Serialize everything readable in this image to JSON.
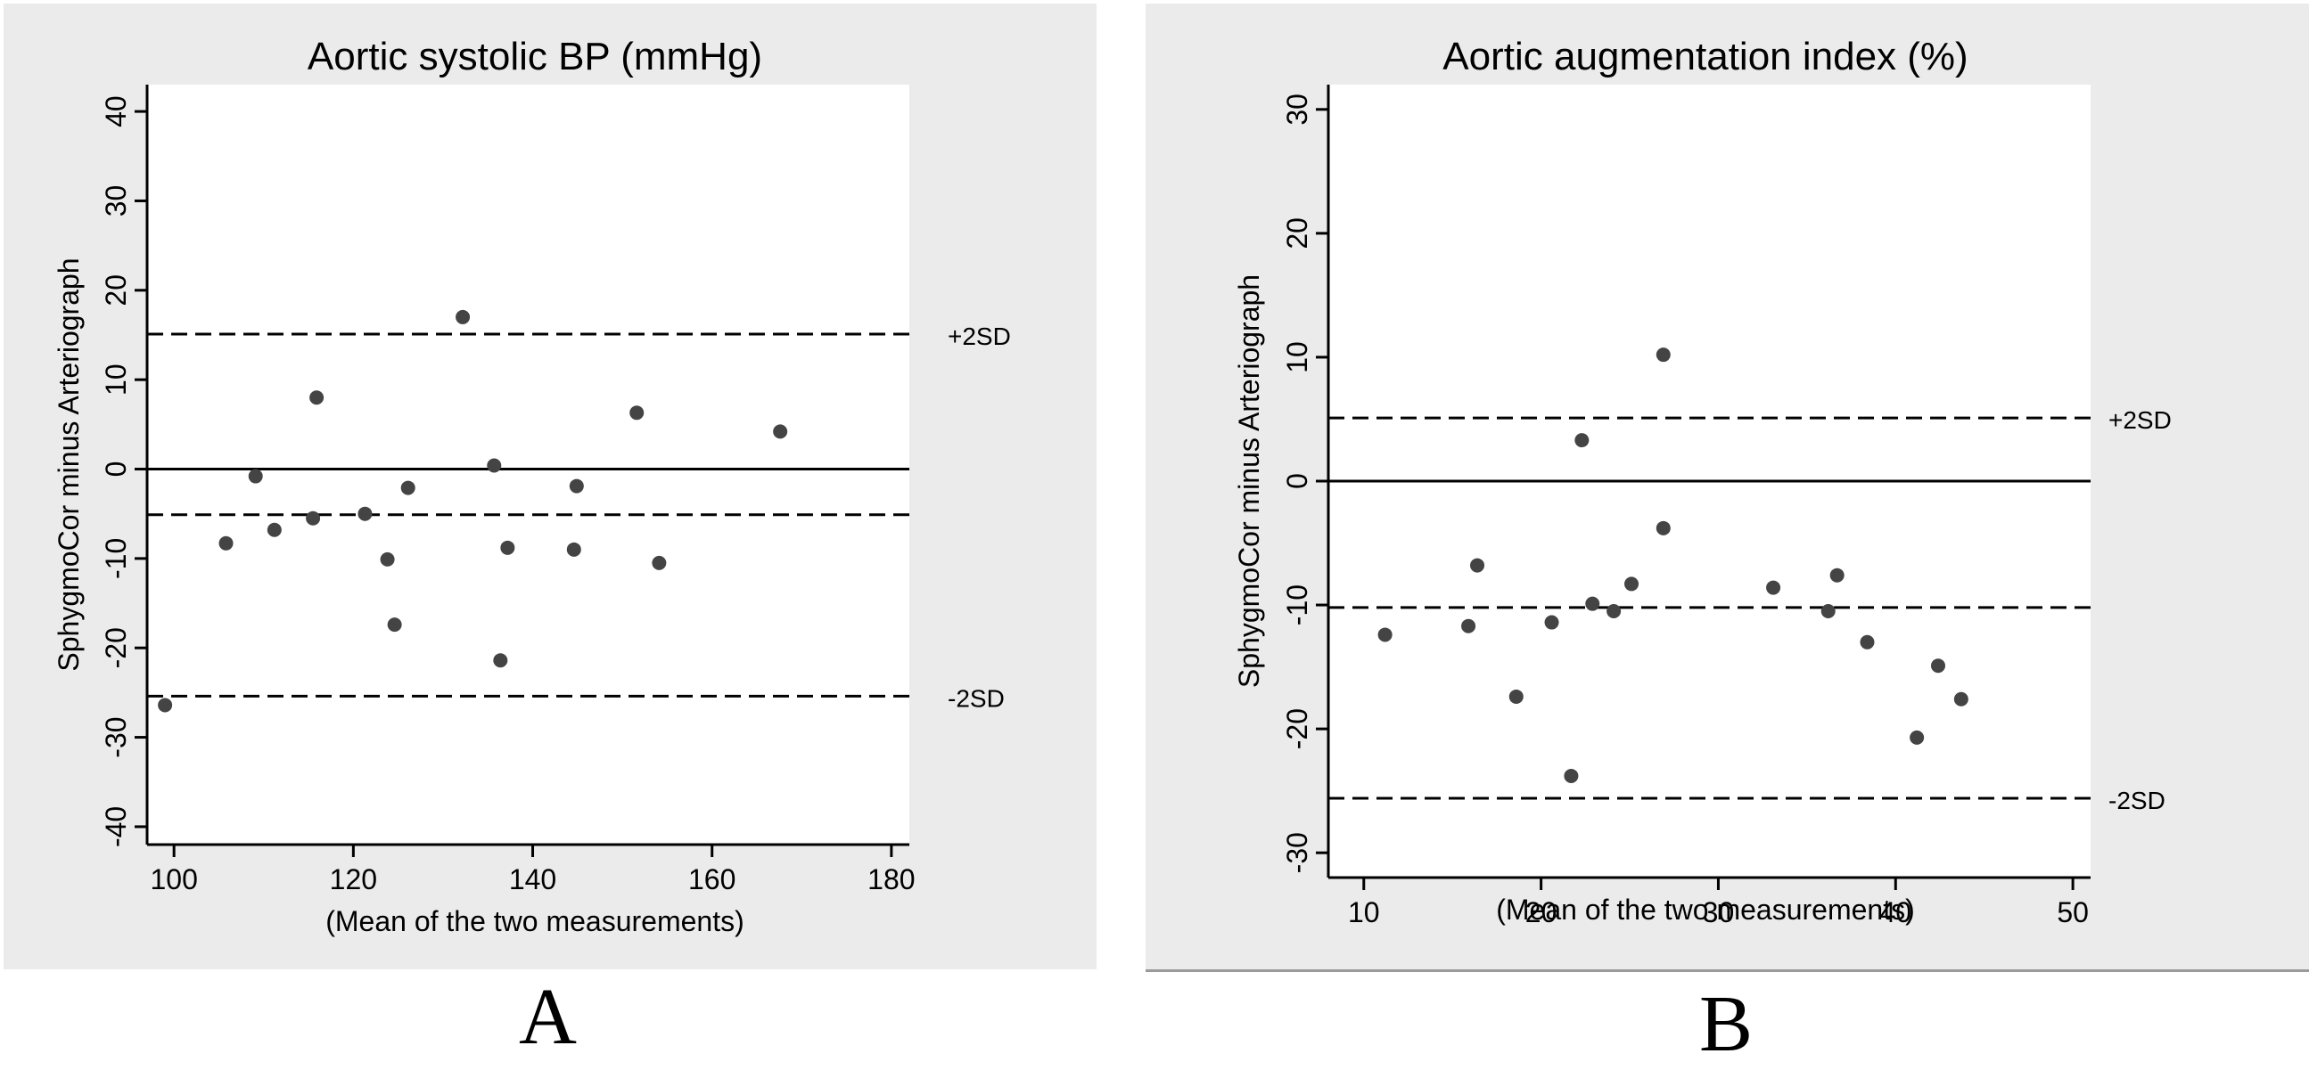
{
  "panels": {
    "A": {
      "letter": "A"
    },
    "B": {
      "letter": "B"
    }
  },
  "chart_data": [
    {
      "type": "scatter",
      "title": "Aortic systolic BP (mmHg)",
      "xlabel": "(Mean of the two measurements)",
      "ylabel": "SphygmoCor minus Arteriograph",
      "xlim": [
        97,
        182
      ],
      "ylim": [
        -42,
        43
      ],
      "xticks": [
        100,
        120,
        140,
        160,
        180
      ],
      "yticks": [
        -40,
        -30,
        -20,
        -10,
        0,
        10,
        20,
        30,
        40
      ],
      "grid": false,
      "lines": [
        {
          "y": 0,
          "style": "solid"
        },
        {
          "y": -5.1,
          "style": "dashed"
        },
        {
          "y": 15.1,
          "style": "dashed",
          "label": "+2SD"
        },
        {
          "y": -25.4,
          "style": "dashed",
          "label": "-2SD"
        }
      ],
      "points": [
        {
          "x": 99,
          "y": -26.4
        },
        {
          "x": 105.8,
          "y": -8.3
        },
        {
          "x": 109.1,
          "y": -0.8
        },
        {
          "x": 111.2,
          "y": -6.8
        },
        {
          "x": 115.5,
          "y": -5.5
        },
        {
          "x": 115.9,
          "y": 8.0
        },
        {
          "x": 121.3,
          "y": -5.0
        },
        {
          "x": 123.8,
          "y": -10.1
        },
        {
          "x": 124.6,
          "y": -17.4
        },
        {
          "x": 126.1,
          "y": -2.1
        },
        {
          "x": 132.2,
          "y": 17.0
        },
        {
          "x": 135.7,
          "y": 0.4
        },
        {
          "x": 136.4,
          "y": -21.4
        },
        {
          "x": 137.2,
          "y": -8.8
        },
        {
          "x": 144.6,
          "y": -9.0
        },
        {
          "x": 144.9,
          "y": -1.9
        },
        {
          "x": 151.6,
          "y": 6.3
        },
        {
          "x": 154.1,
          "y": -10.5
        },
        {
          "x": 167.6,
          "y": 4.2
        }
      ]
    },
    {
      "type": "scatter",
      "title": "Aortic augmentation index (%)",
      "xlabel": "(Mean of the two measurements)",
      "ylabel": "SphygmoCor minus Arteriograph",
      "xlim": [
        8,
        51
      ],
      "ylim": [
        -32,
        32
      ],
      "xticks": [
        10,
        20,
        30,
        40,
        50
      ],
      "yticks": [
        -30,
        -20,
        -10,
        0,
        10,
        20,
        30
      ],
      "grid": false,
      "lines": [
        {
          "y": 0,
          "style": "solid"
        },
        {
          "y": -10.2,
          "style": "dashed"
        },
        {
          "y": 5.1,
          "style": "dashed",
          "label": "+2SD"
        },
        {
          "y": -25.6,
          "style": "dashed",
          "label": "-2SD"
        }
      ],
      "points": [
        {
          "x": 11.2,
          "y": -12.4
        },
        {
          "x": 15.9,
          "y": -11.7
        },
        {
          "x": 16.4,
          "y": -6.8
        },
        {
          "x": 18.6,
          "y": -17.4
        },
        {
          "x": 20.6,
          "y": -11.4
        },
        {
          "x": 21.7,
          "y": -23.8
        },
        {
          "x": 22.3,
          "y": 3.3
        },
        {
          "x": 22.9,
          "y": -9.9
        },
        {
          "x": 24.1,
          "y": -10.5
        },
        {
          "x": 25.1,
          "y": -8.3
        },
        {
          "x": 26.9,
          "y": 10.2
        },
        {
          "x": 26.9,
          "y": -3.8
        },
        {
          "x": 33.1,
          "y": -8.6
        },
        {
          "x": 36.2,
          "y": -10.5
        },
        {
          "x": 36.7,
          "y": -7.6
        },
        {
          "x": 38.4,
          "y": -13.0
        },
        {
          "x": 41.2,
          "y": -20.7
        },
        {
          "x": 42.4,
          "y": -14.9
        },
        {
          "x": 43.7,
          "y": -17.6
        }
      ]
    }
  ]
}
